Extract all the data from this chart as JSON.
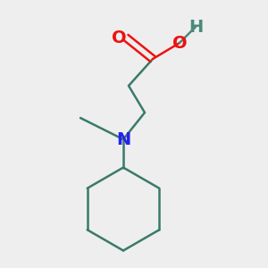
{
  "background_color": "#eeeeee",
  "bond_color": "#3a7a6a",
  "oxygen_color": "#ee1111",
  "nitrogen_color": "#2222ee",
  "hydrogen_color": "#4a8a7a",
  "line_width": 1.8,
  "figsize": [
    3.0,
    3.0
  ],
  "dpi": 100,
  "xlim": [
    0.0,
    1.0
  ],
  "ylim": [
    0.0,
    1.0
  ]
}
